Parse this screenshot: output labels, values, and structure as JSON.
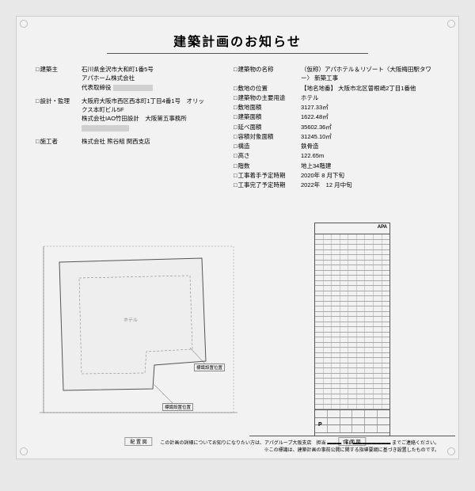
{
  "title": "建築計画のお知らせ",
  "left_rows": [
    {
      "label": "建築主",
      "lines": [
        "石川県金沢市大和町1番5号",
        "アパホーム株式会社",
        "代表取締役 ___REDACT50___"
      ]
    },
    {
      "label": "設計・監理",
      "lines": [
        "大阪府大阪市西区西本町1丁目4番1号　オリックス本町ビル5F",
        "株式会社IAO竹田設計　大阪第五事務所",
        "___REDACT60___"
      ]
    },
    {
      "label": "施工者",
      "lines": [
        "株式会社 熊谷組 関西支店"
      ]
    }
  ],
  "right_rows": [
    {
      "label": "建築物の名称",
      "value": "（仮称）アパホテル＆リゾート〈大阪梅田駅タワー〉 新築工事"
    },
    {
      "label": "敷地の位置",
      "value": "【地名地番】 大阪市北区曽根崎2丁目1番他"
    },
    {
      "label": "建築物の主要用途",
      "value": "ホテル"
    },
    {
      "label": "敷地面積",
      "value": "3127.33㎡"
    },
    {
      "label": "建築面積",
      "value": "1622.48㎡"
    },
    {
      "label": "延べ面積",
      "value": "35602.36㎡"
    },
    {
      "label": "容積対象面積",
      "value": "31245.10㎡"
    },
    {
      "label": "構造",
      "value": "鉄骨造"
    },
    {
      "label": "高さ",
      "value": "122.65m"
    },
    {
      "label": "階数",
      "value": "地上34階建"
    },
    {
      "label": "工事着手予定時期",
      "value": "2020年 8 月下旬"
    },
    {
      "label": "工事完了予定時期",
      "value": "2022年　12 月中旬"
    }
  ],
  "tower_brand": "APA",
  "tower_floors": 34,
  "parking_p": "P",
  "site_anno1": "標識設置位置",
  "site_anno2": "標識設置位置",
  "dia_left_label": "配 置 図",
  "dia_right_label": "立 面 図",
  "footer_lines": [
    "この計画の詳細についてお知りになりたい方は、アパグループ大阪支店　担当 ▬▬▬ TEL ▬▬▬▬▬▬▬▬ までご連絡ください。",
    "※この標識は、建築計画の事前公開に関する指導要綱に基づき設置したものです。"
  ]
}
